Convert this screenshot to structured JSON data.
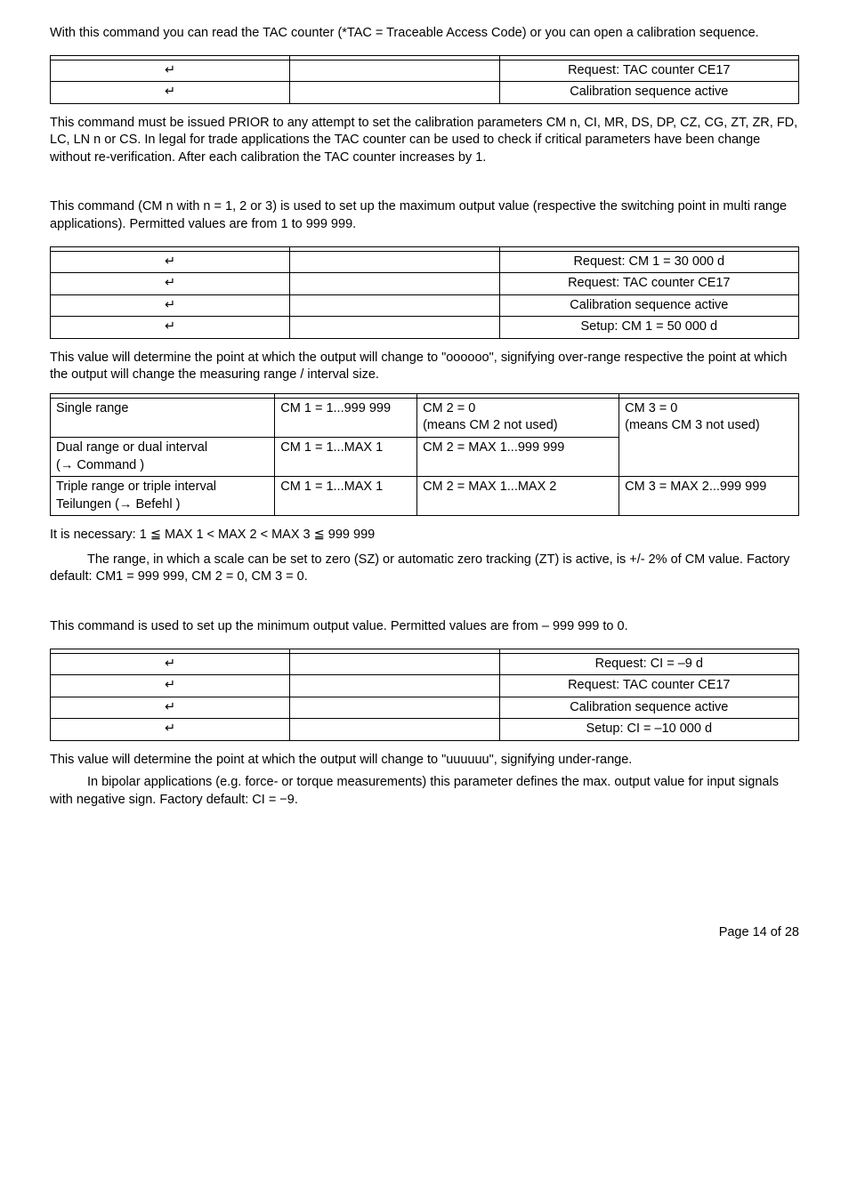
{
  "glyphs": {
    "enter": "↵"
  },
  "section_ce": {
    "intro": "With this command you can read the TAC counter (*TAC = Traceable Access Code) or you can open a calibration sequence.",
    "table": {
      "rows": [
        {
          "c1": "",
          "c2": "",
          "c3": ""
        },
        {
          "c1": "↵",
          "c2": "",
          "c3": "Request: TAC counter CE17"
        },
        {
          "c1": "↵",
          "c2": "",
          "c3": "Calibration sequence active"
        }
      ]
    },
    "after": "This command must be issued PRIOR to any attempt to set the calibration parameters CM n, CI, MR, DS, DP, CZ, CG, ZT, ZR, FD, LC, LN n or CS. In legal for trade applications the TAC counter can be used to check if critical parameters have been change without re-verification. After each calibration the TAC counter increases by 1."
  },
  "section_cm": {
    "intro": "This command (CM n with n = 1, 2 or 3) is used to set up the maximum output value (respective the switching point in multi range applications). Permitted values are from 1 to 999 999.",
    "table": {
      "rows": [
        {
          "c1": "",
          "c2": "",
          "c3": ""
        },
        {
          "c1": "↵",
          "c2": "",
          "c3": "Request: CM 1 = 30 000 d"
        },
        {
          "c1": "↵",
          "c2": "",
          "c3": "Request: TAC counter CE17"
        },
        {
          "c1": "↵",
          "c2": "",
          "c3": "Calibration sequence active"
        },
        {
          "c1": "↵",
          "c2": "",
          "c3": "Setup: CM 1 = 50 000 d"
        }
      ]
    },
    "after": "This value will determine the point at which the output will change to \"oooooo\", signifying over-range respective the point at which the output will change the measuring range / interval size.",
    "cm_table": {
      "header": {
        "c1": "",
        "c2": "",
        "c3": "",
        "c4": ""
      },
      "row1": {
        "c1": "Single range",
        "c2": "CM 1 = 1...999 999",
        "c3a": "CM 2 = 0",
        "c3b": "(means CM 2 not used)",
        "c4a": "CM 3 = 0",
        "c4b": "(means CM 3 not used)"
      },
      "row2": {
        "c1a": "Dual range or dual interval",
        "c1b": "(→ Command         )",
        "c2": "CM 1 = 1...MAX 1",
        "c3": "CM 2 = MAX 1...999 999"
      },
      "row3": {
        "c1a": "Triple range or triple interval",
        "c1b": "Teilungen (→ Befehl        )",
        "c2": "CM 1 = 1...MAX 1",
        "c3": "CM 2 = MAX 1...MAX 2",
        "c4": "CM 3 = MAX 2...999 999"
      }
    },
    "cm_note": "It is necessary: 1 ≦ MAX 1 < MAX 2 < MAX 3 ≦ 999 999",
    "range_note": "The range, in which a scale can be set to zero (SZ)  or automatic zero tracking (ZT) is active, is +/- 2% of CM value. Factory default: CM1 = 999 999, CM 2 = 0, CM 3 = 0."
  },
  "section_ci": {
    "intro": "This command is used to set up the minimum output value. Permitted values are from – 999 999 to 0.",
    "table": {
      "rows": [
        {
          "c1": "",
          "c2": "",
          "c3": ""
        },
        {
          "c1": "↵",
          "c2": "",
          "c3": "Request: CI = –9 d"
        },
        {
          "c1": "↵",
          "c2": "",
          "c3": "Request: TAC counter CE17"
        },
        {
          "c1": "↵",
          "c2": "",
          "c3": "Calibration sequence active"
        },
        {
          "c1": "↵",
          "c2": "",
          "c3": "Setup: CI = –10 000 d"
        }
      ]
    },
    "after1": "This value will determine the point at which the output will change to \"uuuuuu\", signifying under-range.",
    "after2": "In bipolar applications (e.g. force- or torque measurements) this parameter defines the max. output value for input signals with negative sign. Factory default: CI = −9."
  },
  "footer": "Page 14 of 28"
}
